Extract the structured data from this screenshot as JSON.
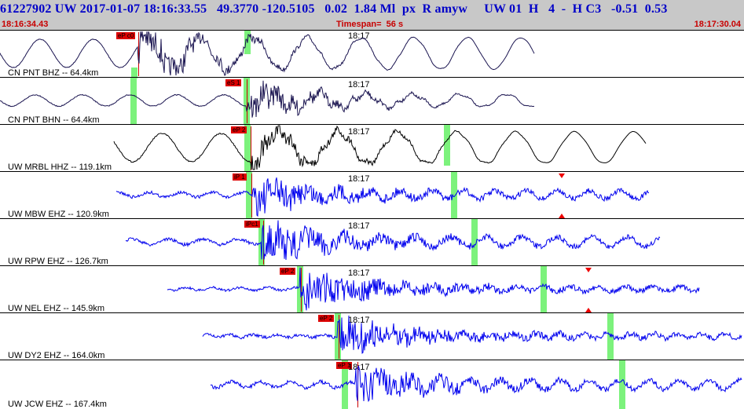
{
  "header": {
    "title": "61227902 UW 2017-01-07 18:16:33.55   49.3770 -120.5105   0.02  1.84 Ml  px  R amyw     UW 01  H   4  -  H C3   -0.51  0.53",
    "start_time": "18:16:34.43",
    "timespan": "Timespan=  56 s",
    "end_time": "18:17:30.04"
  },
  "panels": [
    {
      "station": "CN PNT BHZ -- 64.4km",
      "tick": "18:17",
      "pick": "eP c0",
      "color": "#1a1450"
    },
    {
      "station": "CN PNT BHN -- 64.4km",
      "tick": "18:17",
      "pick": "eS 1",
      "color": "#1a1450"
    },
    {
      "station": "UW MRBL HHZ -- 119.1km",
      "tick": "18:17",
      "pick": "eP 2",
      "color": "#000000"
    },
    {
      "station": "UW MBW EHZ -- 120.9km",
      "tick": "18:17",
      "pick": "iP 1",
      "color": "#0000ee"
    },
    {
      "station": "UW RPW EHZ -- 126.7km",
      "tick": "18:17",
      "pick": "iPc1",
      "color": "#0000ee"
    },
    {
      "station": "UW NEL EHZ -- 145.9km",
      "tick": "18:17",
      "pick": "eP 2",
      "color": "#0000ee"
    },
    {
      "station": "UW DY2 EHZ -- 164.0km",
      "tick": "18:17",
      "pick": "eP 2",
      "color": "#0000ee"
    },
    {
      "station": "UW JCW EHZ -- 167.4km",
      "tick": "18:17",
      "pick": "eP 1",
      "color": "#0000ee"
    }
  ]
}
